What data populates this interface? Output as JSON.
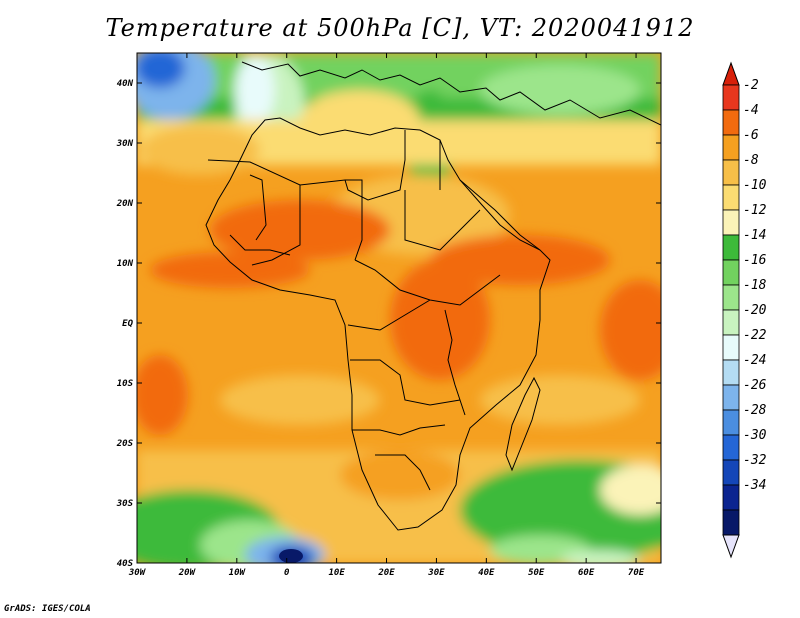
{
  "title": "Temperature at 500hPa [C], VT: 2020041912",
  "credit": "GrADS: IGES/COLA",
  "axes": {
    "lat_labels": [
      "40N",
      "30N",
      "20N",
      "10N",
      "EQ",
      "10S",
      "20S",
      "30S",
      "40S"
    ],
    "lat_values": [
      40,
      30,
      20,
      10,
      0,
      -10,
      -20,
      -30,
      -40
    ],
    "lon_labels": [
      "30W",
      "20W",
      "10W",
      "0",
      "10E",
      "20E",
      "30E",
      "40E",
      "50E",
      "60E",
      "70E"
    ],
    "lon_values": [
      -30,
      -20,
      -10,
      0,
      10,
      20,
      30,
      40,
      50,
      60,
      70
    ],
    "lon_range": [
      -30,
      75
    ],
    "lat_range": [
      -40,
      45
    ]
  },
  "colorbar": {
    "levels": [
      "-2",
      "-4",
      "-6",
      "-8",
      "-10",
      "-12",
      "-14",
      "-16",
      "-18",
      "-20",
      "-22",
      "-24",
      "-26",
      "-28",
      "-30",
      "-32",
      "-34"
    ],
    "colors": [
      "#e8371e",
      "#f26b0f",
      "#f5a020",
      "#f7bf48",
      "#fbdc72",
      "#fbf3b8",
      "#3dba3a",
      "#72d25f",
      "#9ce58b",
      "#c9f3c0",
      "#e8fbfb",
      "#b4dcf3",
      "#7db4ec",
      "#4b8ee0",
      "#2466d6",
      "#1446b8",
      "#0b2490",
      "#081968"
    ],
    "top_color": "#d8200a",
    "bottom_color": "#e6e4fb"
  }
}
